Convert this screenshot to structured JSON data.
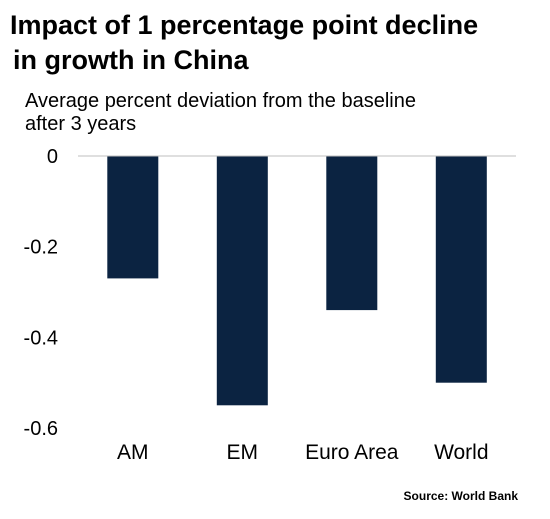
{
  "title_lines": [
    "Impact of 1 percentage point decline",
    "in growth in China"
  ],
  "subtitle_lines": [
    "Average percent deviation from the baseline",
    "after 3 years"
  ],
  "source": "Source: World Bank",
  "colors": {
    "bar": "#0b2341",
    "axis": "#bfbfbf"
  },
  "chart_data": {
    "type": "bar",
    "title": "Impact of 1 percentage point decline in growth in China",
    "subtitle": "Average percent deviation from the baseline after 3 years",
    "categories": [
      "AM",
      "EM",
      "Euro Area",
      "World"
    ],
    "values": [
      -0.27,
      -0.55,
      -0.34,
      -0.5
    ],
    "ylim": [
      -0.6,
      0
    ],
    "yticks": [
      0,
      -0.2,
      -0.4,
      -0.6
    ],
    "ytick_labels": [
      "0",
      "-0.2",
      "-0.4",
      "-0.6"
    ],
    "grid": false,
    "legend": "none",
    "xlabel": "",
    "ylabel": ""
  }
}
